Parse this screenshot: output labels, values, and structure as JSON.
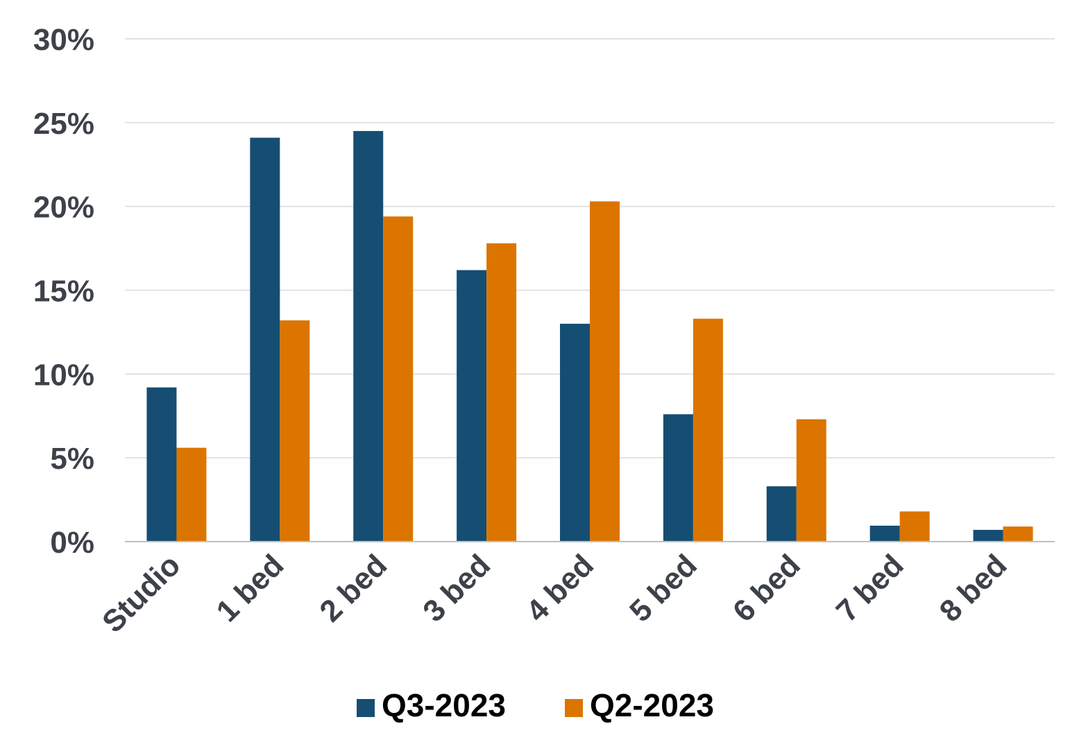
{
  "chart_data": {
    "type": "bar",
    "title": "",
    "xlabel": "",
    "ylabel": "",
    "ylim": [
      0,
      30
    ],
    "y_ticks": [
      0,
      5,
      10,
      15,
      20,
      25,
      30
    ],
    "y_tick_format": "percent",
    "grid": true,
    "legend_position": "bottom",
    "categories": [
      "Studio",
      "1 bed",
      "2 bed",
      "3 bed",
      "4 bed",
      "5 bed",
      "6 bed",
      "7 bed",
      "8 bed"
    ],
    "series": [
      {
        "name": "Q3-2023",
        "color": "#154e72",
        "values": [
          9.2,
          24.1,
          24.5,
          16.2,
          13.0,
          7.6,
          3.3,
          0.95,
          0.7
        ]
      },
      {
        "name": "Q2-2023",
        "color": "#db7500",
        "values": [
          5.6,
          13.2,
          19.4,
          17.8,
          20.3,
          13.3,
          7.3,
          1.8,
          0.9
        ]
      }
    ]
  }
}
